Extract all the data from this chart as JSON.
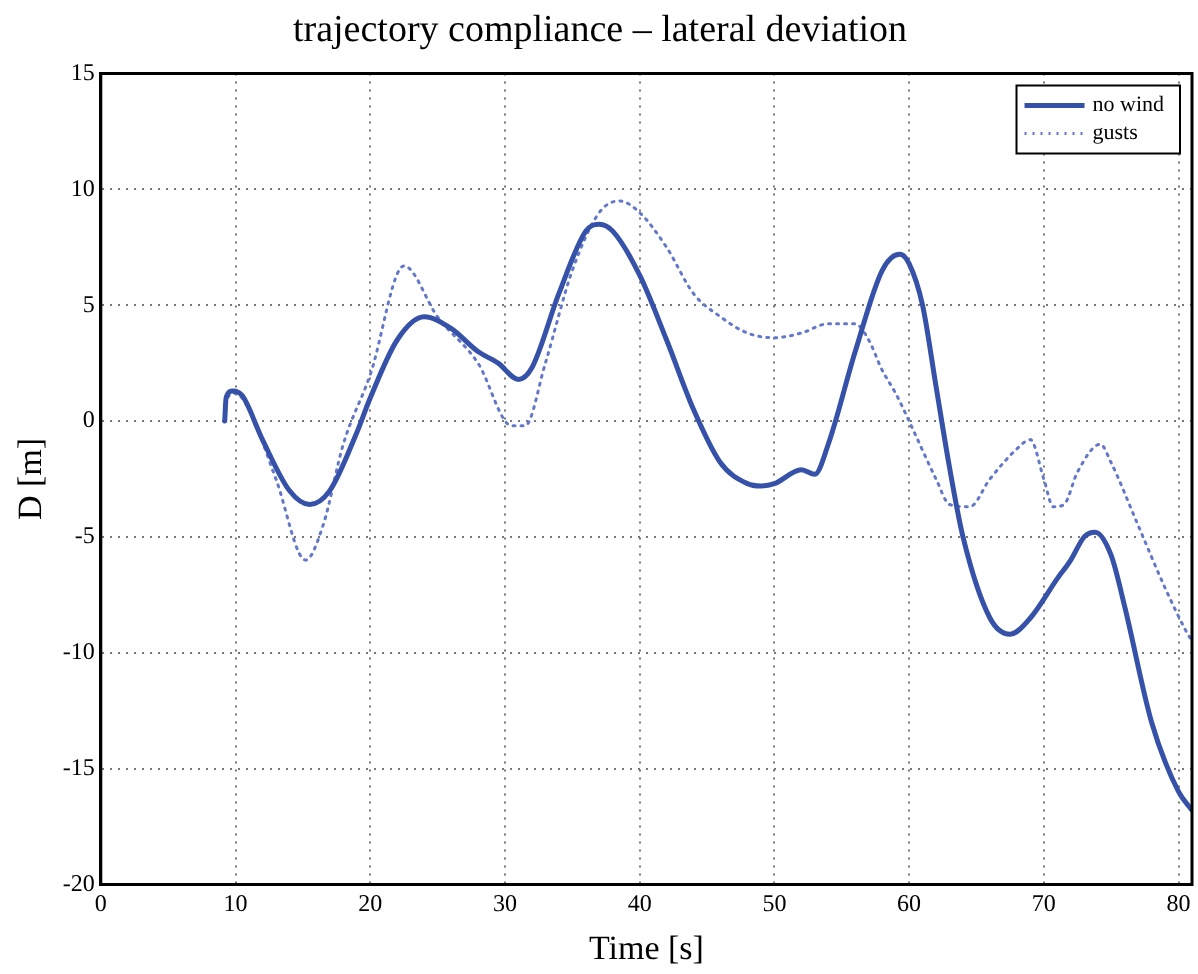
{
  "chart_data": {
    "type": "line",
    "title": "trajectory compliance – lateral deviation",
    "xlabel": "Time [s]",
    "ylabel": "D [m]",
    "xlim": [
      0,
      81
    ],
    "xticks": [
      0,
      10,
      20,
      30,
      40,
      50,
      60,
      70,
      80
    ],
    "ylim": [
      -20,
      15
    ],
    "yticks": [
      -20,
      -15,
      -10,
      -5,
      0,
      5,
      10,
      15
    ],
    "grid": true,
    "legend": "top right",
    "marker": "none",
    "series": [
      {
        "name": "no wind",
        "color": "#3651a8",
        "line_style": "solid",
        "x": [
          9.2,
          9.3,
          9.8,
          10.5,
          12,
          14,
          15.5,
          17,
          19,
          20,
          22,
          24,
          26,
          28,
          29.5,
          31,
          32,
          34,
          36,
          37,
          38,
          40,
          42,
          44,
          46,
          48,
          49,
          50,
          52,
          53,
          54,
          56,
          58,
          59.3,
          60,
          61,
          62,
          63,
          64,
          66,
          67.5,
          69,
          71,
          72,
          73,
          73.8,
          75,
          76,
          78,
          80,
          81
        ],
        "values": [
          0,
          1,
          1.3,
          1.1,
          -0.8,
          -3,
          -3.6,
          -3,
          -0.5,
          1,
          3.5,
          4.5,
          4,
          3,
          2.5,
          1.8,
          2.3,
          5.5,
          8.2,
          8.5,
          8.2,
          6.3,
          3.5,
          0.5,
          -1.8,
          -2.7,
          -2.8,
          -2.7,
          -2.1,
          -2.3,
          -1,
          3,
          6.5,
          7.2,
          6.8,
          5,
          1.5,
          -2,
          -5,
          -8.5,
          -9.2,
          -8.5,
          -6.8,
          -6,
          -5,
          -4.8,
          -5.8,
          -8,
          -13,
          -16,
          -16.8
        ]
      },
      {
        "name": "gusts",
        "color": "#6478c8",
        "line_style": "dotted",
        "x": [
          9.2,
          9.4,
          10,
          11,
          13,
          15.2,
          16.5,
          18,
          20,
          22.5,
          25,
          28,
          30.5,
          31.5,
          33,
          35,
          37,
          38.5,
          40,
          42,
          44,
          46,
          48,
          50,
          52,
          54,
          56,
          57,
          58,
          59,
          60,
          62,
          63,
          64.5,
          66,
          68,
          69,
          70,
          70.7,
          71.5,
          72.5,
          74.2,
          75,
          77,
          79,
          80.5,
          81
        ],
        "values": [
          0,
          1,
          1.2,
          0.5,
          -2.5,
          -6,
          -4.5,
          -1,
          2,
          6.7,
          4.5,
          2.5,
          -0.2,
          -0.2,
          2.5,
          6.5,
          9,
          9.5,
          9,
          7.5,
          5.5,
          4.5,
          3.8,
          3.6,
          3.8,
          4.2,
          4.2,
          3.5,
          2.2,
          1.2,
          0,
          -2.5,
          -3.6,
          -3.7,
          -2.5,
          -1.2,
          -0.8,
          -2.5,
          -3.7,
          -3.6,
          -2.2,
          -1,
          -1.8,
          -4.5,
          -7.2,
          -9,
          -9.5
        ]
      }
    ]
  }
}
